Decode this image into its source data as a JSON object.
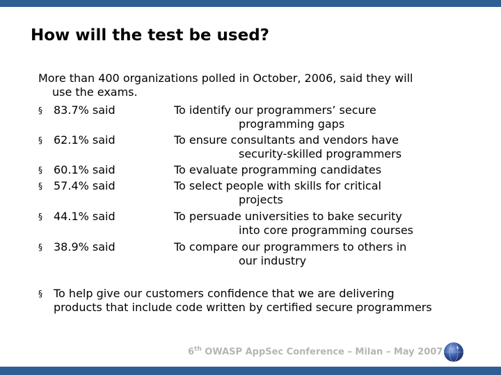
{
  "colors": {
    "bar": "#2d5f95",
    "footer_text": "#b5b5b5"
  },
  "title": "How will the test be used?",
  "intro_line1": "More than 400 organizations polled in October, 2006, said they will",
  "intro_line2": "use the exams.",
  "bullet_glyph": "§",
  "items": [
    {
      "pct": "83.7% said",
      "line1": "To identify our programmers’ secure",
      "line2": "programming gaps"
    },
    {
      "pct": "62.1% said",
      "line1": "To ensure consultants and vendors have",
      "line2": "security-skilled programmers"
    },
    {
      "pct": "60.1% said",
      "line1": "To evaluate programming candidates",
      "line2": ""
    },
    {
      "pct": "57.4% said",
      "line1": "To select people with skills for critical",
      "line2": "projects"
    },
    {
      "pct": "44.1% said",
      "line1": "To persuade universities to bake security",
      "line2": "into core programming courses"
    },
    {
      "pct": "38.9% said",
      "line1": "To compare our programmers to others in",
      "line2": "our industry"
    }
  ],
  "closing_line1": "To help give our customers confidence that we are delivering",
  "closing_line2": "products that include code written by certified secure programmers",
  "footer": {
    "num": "6",
    "sup": "th",
    "text": " OWASP AppSec Conference – Milan – May 2007"
  },
  "logo_icon": "owasp-globe-icon"
}
